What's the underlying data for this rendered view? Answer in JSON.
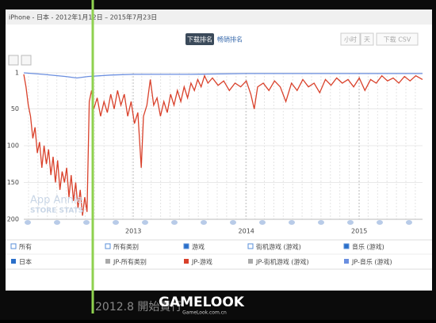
{
  "header": {
    "title": "iPhone - 日本 - 2012年1月12日 – 2015年7月23日",
    "tabs": [
      "下载排名",
      "畅销排名"
    ],
    "buttons": [
      "小时",
      "天",
      "下载 CSV"
    ]
  },
  "chart_data": {
    "type": "line",
    "xlim": [
      2012.03,
      2015.56
    ],
    "xticks": [
      2013,
      2014,
      2015
    ],
    "ylim": [
      200,
      1
    ],
    "yticks": [
      1,
      50,
      100,
      150,
      200
    ],
    "grid": true,
    "series": [
      {
        "name": "JP-游戏",
        "color": "#d9412b",
        "x": [
          2012.03,
          2012.05,
          2012.07,
          2012.09,
          2012.11,
          2012.13,
          2012.15,
          2012.17,
          2012.19,
          2012.21,
          2012.23,
          2012.25,
          2012.27,
          2012.29,
          2012.31,
          2012.33,
          2012.35,
          2012.37,
          2012.39,
          2012.41,
          2012.43,
          2012.45,
          2012.47,
          2012.49,
          2012.51,
          2012.53,
          2012.55,
          2012.57,
          2012.59,
          2012.61,
          2012.63,
          2012.65,
          2012.68,
          2012.71,
          2012.74,
          2012.77,
          2012.8,
          2012.83,
          2012.86,
          2012.89,
          2012.92,
          2012.95,
          2012.98,
          2013.01,
          2013.04,
          2013.07,
          2013.09,
          2013.12,
          2013.15,
          2013.18,
          2013.21,
          2013.24,
          2013.27,
          2013.3,
          2013.33,
          2013.36,
          2013.39,
          2013.42,
          2013.45,
          2013.48,
          2013.51,
          2013.54,
          2013.57,
          2013.6,
          2013.63,
          2013.66,
          2013.7,
          2013.75,
          2013.8,
          2013.85,
          2013.9,
          2013.95,
          2014,
          2014.04,
          2014.07,
          2014.1,
          2014.15,
          2014.2,
          2014.25,
          2014.3,
          2014.35,
          2014.4,
          2014.45,
          2014.5,
          2014.55,
          2014.6,
          2014.65,
          2014.7,
          2014.75,
          2014.8,
          2014.85,
          2014.9,
          2014.95,
          2015,
          2015.05,
          2015.1,
          2015.15,
          2015.2,
          2015.25,
          2015.3,
          2015.35,
          2015.4,
          2015.45,
          2015.5,
          2015.56
        ],
        "values": [
          3,
          20,
          45,
          60,
          90,
          75,
          110,
          95,
          130,
          100,
          125,
          105,
          140,
          115,
          150,
          120,
          160,
          135,
          150,
          130,
          170,
          140,
          175,
          150,
          185,
          160,
          195,
          170,
          190,
          40,
          25,
          50,
          35,
          60,
          40,
          55,
          30,
          50,
          25,
          45,
          30,
          60,
          40,
          70,
          55,
          130,
          60,
          45,
          10,
          45,
          35,
          60,
          40,
          55,
          30,
          45,
          25,
          40,
          20,
          35,
          15,
          25,
          10,
          20,
          5,
          15,
          8,
          18,
          12,
          25,
          15,
          20,
          12,
          30,
          50,
          20,
          15,
          25,
          12,
          20,
          40,
          15,
          25,
          10,
          20,
          15,
          28,
          10,
          18,
          8,
          15,
          10,
          20,
          8,
          25,
          10,
          15,
          5,
          12,
          8,
          15,
          6,
          12,
          5,
          10
        ]
      },
      {
        "name": "JP-音乐 (游戏)",
        "color": "#6b8fe0",
        "x": [
          2012.03,
          2012.2,
          2012.4,
          2012.5,
          2012.6,
          2012.8,
          2013,
          2013.5,
          2014,
          2014.5,
          2015,
          2015.56
        ],
        "values": [
          1,
          3,
          6,
          8,
          6,
          4,
          3,
          3,
          2,
          2,
          2,
          2
        ]
      }
    ]
  },
  "filters": {
    "row1": [
      "所有",
      "所有类别",
      "游戏",
      "街机游戏 (游戏)",
      "音乐 (游戏)"
    ],
    "row2": [
      "日本",
      "JP-所有类别",
      "JP-街机游戏 (游戏)"
    ]
  },
  "watermark": [
    "App Annie",
    "STORE STATS"
  ],
  "caption": "2012.8 開始賣行",
  "logo": {
    "name": "GAMELOOK",
    "url": "GameLook.com.cn"
  }
}
